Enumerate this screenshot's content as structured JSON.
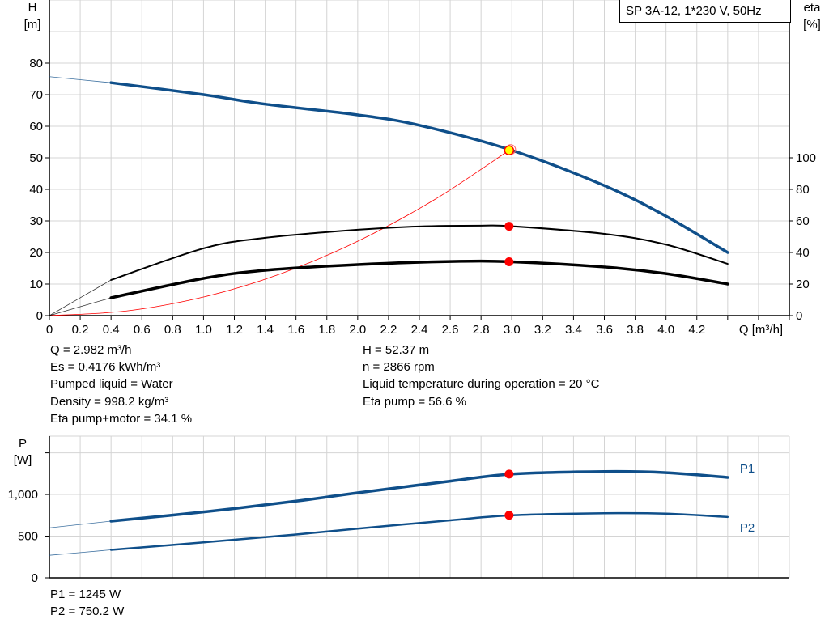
{
  "chart_data": [
    {
      "type": "line",
      "title": "SP 3A-12, 1*230 V, 50Hz",
      "xlabel": "Q [m³/h]",
      "ylabel": "H",
      "ylabel_unit": "[m]",
      "y2label": "eta",
      "y2label_unit": "[%]",
      "xlim": [
        0,
        4.8
      ],
      "ylim": [
        0,
        100
      ],
      "y2lim": [
        0,
        200
      ],
      "grid": true,
      "x_ticks": [
        "0",
        "0.2",
        "0.4",
        "0.6",
        "0.8",
        "1.0",
        "1.2",
        "1.4",
        "1.6",
        "1.8",
        "2.0",
        "2.2",
        "2.4",
        "2.6",
        "2.8",
        "3.0",
        "3.2",
        "3.4",
        "3.6",
        "3.8",
        "4.0",
        "4.2"
      ],
      "y_ticks": [
        "0",
        "10",
        "20",
        "30",
        "40",
        "50",
        "60",
        "70",
        "80"
      ],
      "y2_ticks": [
        "0",
        "20",
        "40",
        "60",
        "80",
        "100"
      ],
      "series": [
        {
          "key": "H",
          "axis": "left",
          "color": "#0f4f8a",
          "x": [
            0,
            0.4,
            1.0,
            1.4,
            2.0,
            2.4,
            3.0,
            3.6,
            4.0,
            4.4
          ],
          "y": [
            75.7,
            73.8,
            70.0,
            67.0,
            63.6,
            60.3,
            52.37,
            41.2,
            31.5,
            20.0
          ]
        },
        {
          "key": "eta_pump",
          "axis": "right",
          "color": "#000000",
          "x": [
            0,
            0.4,
            1.0,
            1.4,
            2.0,
            2.4,
            2.8,
            3.0,
            3.6,
            4.0,
            4.4
          ],
          "y": [
            0,
            22.6,
            42.6,
            49.3,
            54.4,
            56.5,
            57.0,
            56.6,
            51.8,
            45.0,
            32.8
          ]
        },
        {
          "key": "eta_pump_motor",
          "axis": "right",
          "color": "#000000",
          "x": [
            0,
            0.4,
            1.0,
            1.4,
            2.0,
            2.6,
            3.0,
            3.6,
            4.0,
            4.4
          ],
          "y": [
            0,
            11.3,
            23.6,
            28.7,
            32.3,
            34.3,
            34.1,
            30.8,
            26.6,
            20.0
          ]
        },
        {
          "key": "system",
          "axis": "left",
          "color": "#ff0000",
          "x": [
            0,
            0.5,
            1.0,
            1.5,
            2.0,
            2.5,
            2.982
          ],
          "y": [
            0,
            1.47,
            5.89,
            13.25,
            23.56,
            36.8,
            52.37
          ]
        }
      ],
      "duty_points": {
        "Q": 2.982,
        "H": 52.37,
        "eta_pump": 56.6,
        "eta_pump_motor": 34.1
      }
    },
    {
      "type": "line",
      "ylabel": "P",
      "ylabel_unit": "[W]",
      "xlim": [
        0,
        4.8
      ],
      "ylim": [
        0,
        1700
      ],
      "grid": true,
      "y_ticks": [
        "0",
        "500",
        "1,000"
      ],
      "series": [
        {
          "name": "P1",
          "color": "#0f4f8a",
          "x": [
            0,
            0.4,
            1.0,
            1.6,
            2.0,
            2.6,
            3.0,
            3.6,
            4.0,
            4.4
          ],
          "y": [
            600,
            680,
            790,
            920,
            1020,
            1160,
            1245,
            1275,
            1262,
            1205
          ]
        },
        {
          "name": "P2",
          "color": "#0f4f8a",
          "x": [
            0,
            0.4,
            1.0,
            1.6,
            2.0,
            2.6,
            3.0,
            3.6,
            4.0,
            4.4
          ],
          "y": [
            270,
            335,
            425,
            520,
            590,
            690,
            750,
            775,
            770,
            730
          ]
        }
      ],
      "duty_points": {
        "Q": 2.982,
        "P1": 1245,
        "P2": 750.2
      }
    }
  ],
  "info": {
    "left": [
      "Q = 2.982 m³/h",
      "Es = 0.4176 kWh/m³",
      "Pumped liquid = Water",
      "Density = 998.2 kg/m³",
      "Eta pump+motor = 34.1 %"
    ],
    "right": [
      "H = 52.37 m",
      "n = 2866 rpm",
      "Liquid temperature during operation = 20 °C",
      "Eta pump = 56.6 %"
    ],
    "power": [
      "P1 = 1245 W",
      "P2 = 750.2 W"
    ]
  }
}
